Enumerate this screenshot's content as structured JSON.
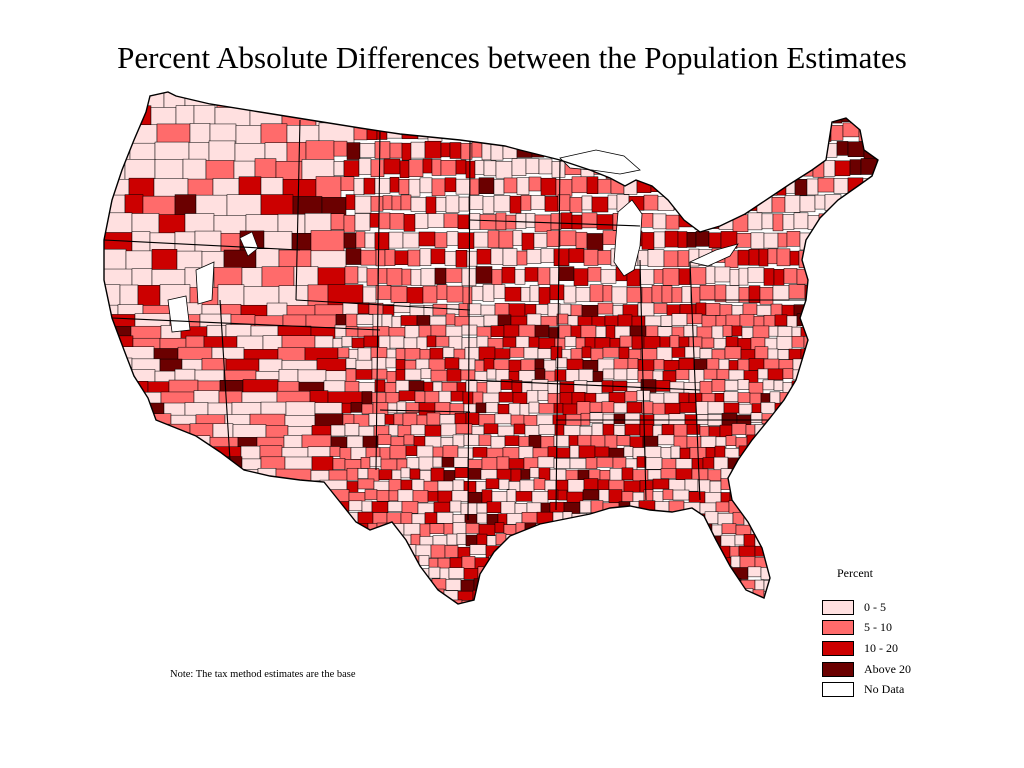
{
  "title": "Percent Absolute Differences between the Population Estimates",
  "note": "Note: The tax method estimates are the base",
  "legend": {
    "title": "Percent",
    "items": [
      {
        "label": "0 - 5",
        "color": "#ffe0e0",
        "class": "low"
      },
      {
        "label": "5 - 10",
        "color": "#ff6b6b",
        "class": "mid"
      },
      {
        "label": "10 - 20",
        "color": "#cc0000",
        "class": "high"
      },
      {
        "label": "Above 20",
        "color": "#6b0000",
        "class": "vhigh"
      },
      {
        "label": "No Data",
        "color": "#ffffff",
        "class": "none"
      }
    ]
  },
  "map": {
    "region": "contiguous-united-states",
    "unit": "county",
    "palette": [
      "#ffe0e0",
      "#ff6b6b",
      "#cc0000",
      "#6b0000"
    ],
    "border_color": "#000000"
  }
}
